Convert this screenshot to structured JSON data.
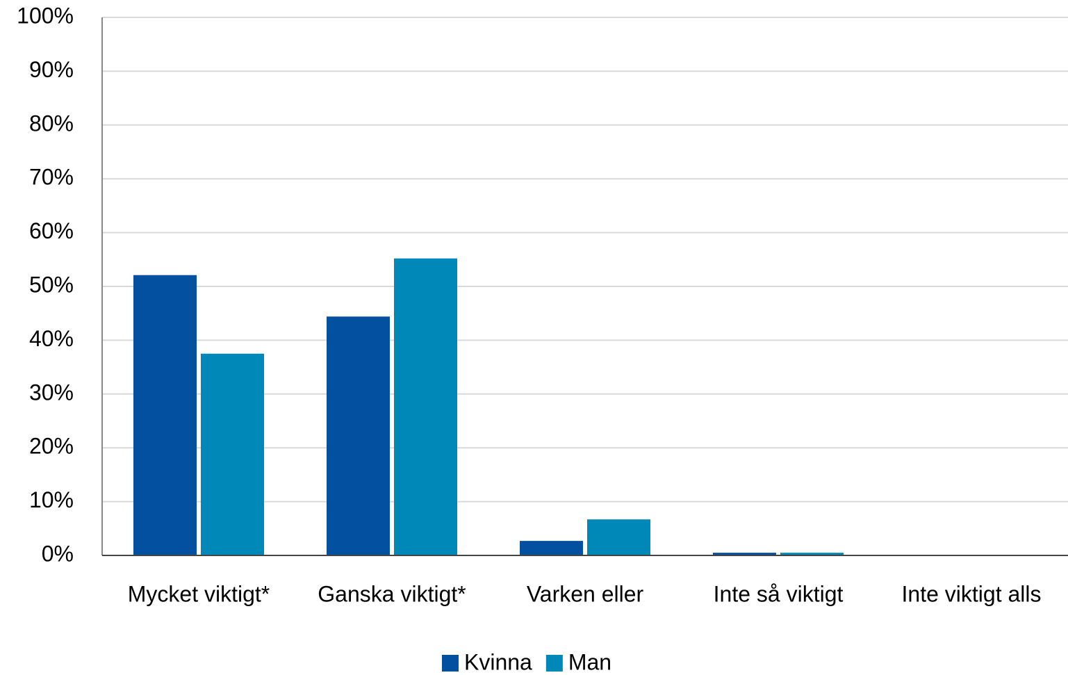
{
  "chart_data": {
    "type": "bar",
    "categories": [
      "Mycket viktigt*",
      "Ganska viktigt*",
      "Varken eller",
      "Inte så viktigt",
      "Inte viktigt alls"
    ],
    "series": [
      {
        "name": "Kvinna",
        "color": "#0350a0",
        "values": [
          52.1,
          44.4,
          2.7,
          0.5,
          0
        ]
      },
      {
        "name": "Man",
        "color": "#0089b8",
        "values": [
          37.5,
          55.2,
          6.7,
          0.5,
          0
        ]
      }
    ],
    "ylim": [
      0,
      100
    ],
    "yticks": [
      {
        "value": 0,
        "label": "0%"
      },
      {
        "value": 10,
        "label": "10%"
      },
      {
        "value": 20,
        "label": "20%"
      },
      {
        "value": 30,
        "label": "30%"
      },
      {
        "value": 40,
        "label": "40%"
      },
      {
        "value": 50,
        "label": "50%"
      },
      {
        "value": 60,
        "label": "60%"
      },
      {
        "value": 70,
        "label": "70%"
      },
      {
        "value": 80,
        "label": "80%"
      },
      {
        "value": 90,
        "label": "90%"
      },
      {
        "value": 100,
        "label": "100%"
      }
    ],
    "grid": true,
    "legend": "bottom"
  }
}
